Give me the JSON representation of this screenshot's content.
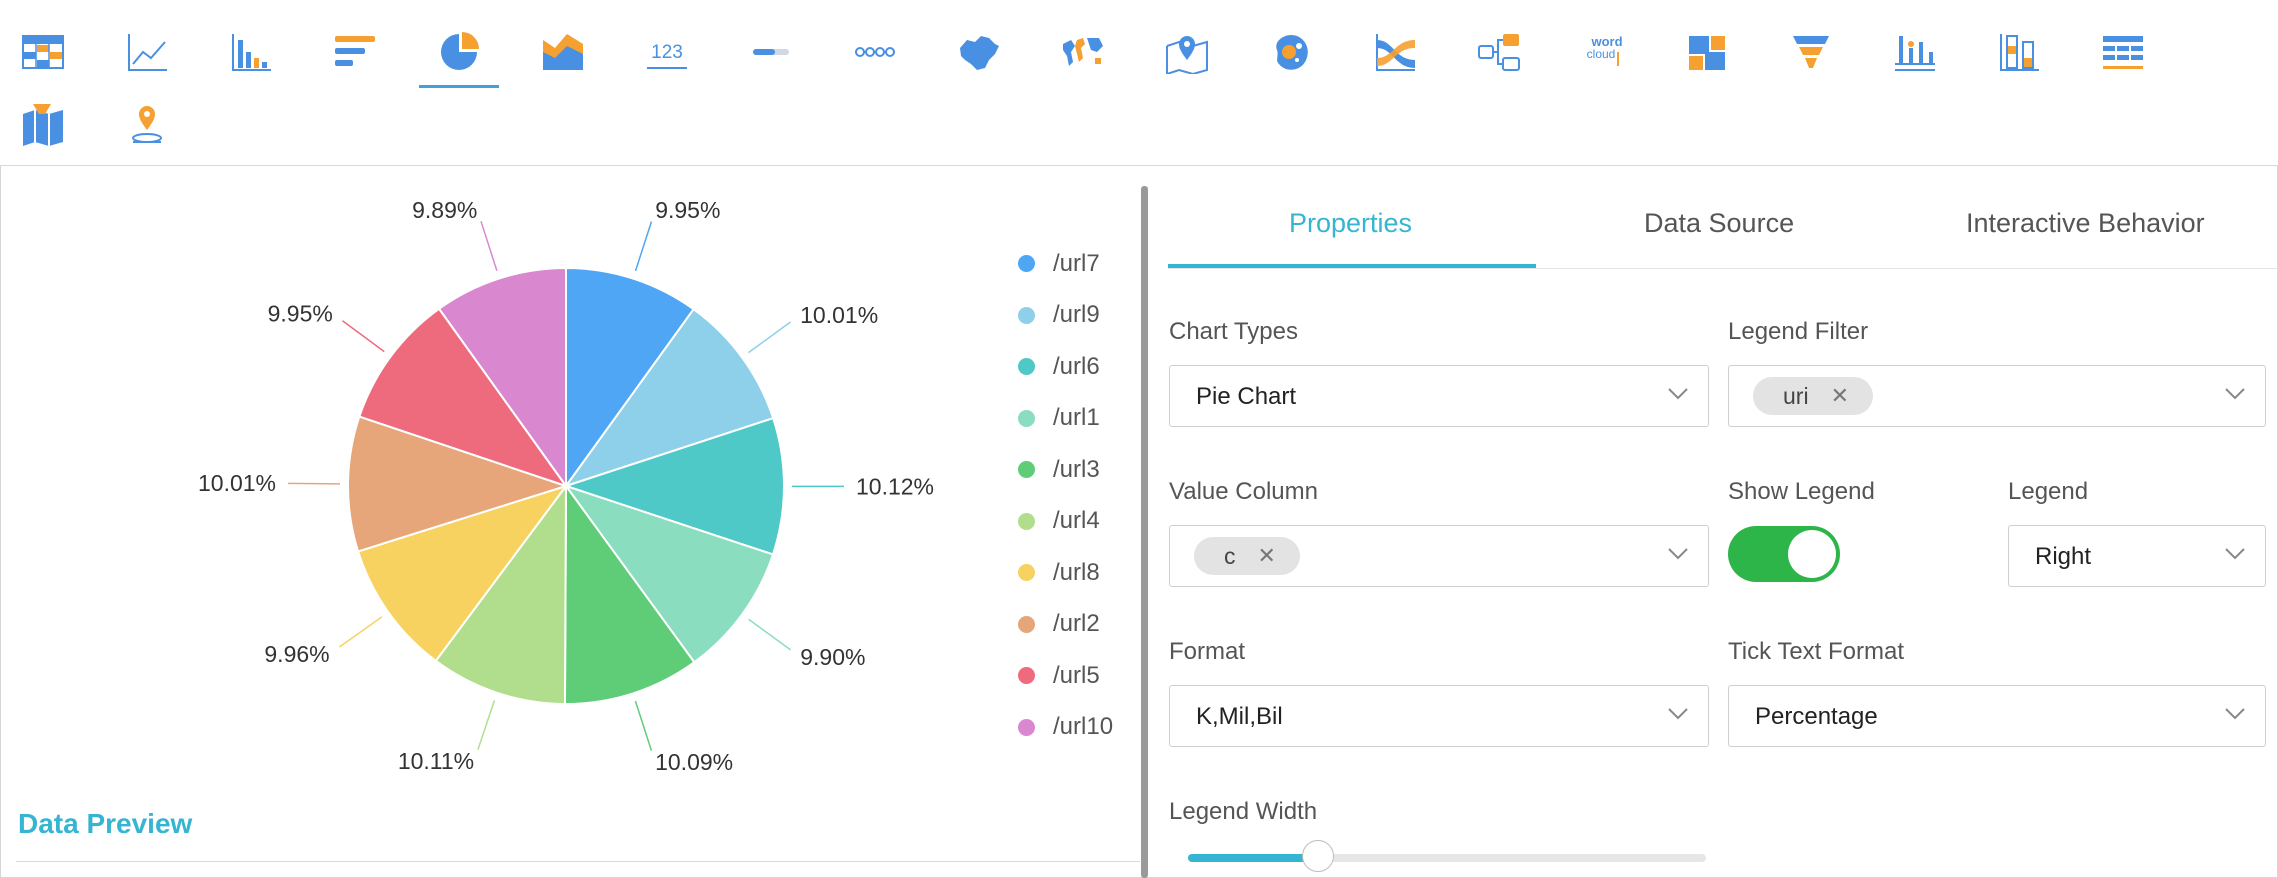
{
  "toolbar": {
    "icons": [
      "table-icon",
      "line-chart-icon",
      "column-chart-icon",
      "bar-chart-icon",
      "pie-chart-icon",
      "area-chart-icon",
      "kpi-number-icon",
      "progress-bar-icon",
      "timeline-icon",
      "china-map-icon",
      "world-map-icon",
      "location-map-icon",
      "bubble-map-icon",
      "sankey-icon",
      "flow-diagram-icon",
      "word-cloud-icon",
      "treemap-icon",
      "funnel-icon",
      "radar-bar-icon",
      "stacked-column-icon",
      "cross-table-icon",
      "area-map-icon",
      "pin-map-icon"
    ],
    "active_index": 4,
    "kpi_icon_text": "123",
    "wordcloud_icon_text": [
      "word",
      "cloud"
    ]
  },
  "chart_data": {
    "type": "pie",
    "categories": [
      "/url7",
      "/url9",
      "/url6",
      "/url1",
      "/url3",
      "/url4",
      "/url8",
      "/url2",
      "/url5",
      "/url10"
    ],
    "values": [
      9.95,
      10.01,
      10.12,
      9.9,
      10.09,
      10.11,
      9.96,
      10.01,
      9.95,
      9.89
    ],
    "labels": [
      "9.95%",
      "10.01%",
      "10.12%",
      "9.90%",
      "10.09%",
      "10.11%",
      "9.96%",
      "10.01%",
      "9.95%",
      "9.89%"
    ],
    "colors": [
      "#4fa6f5",
      "#8ed0ea",
      "#4ec9c7",
      "#8addbf",
      "#5fcc78",
      "#b0de8c",
      "#f8d260",
      "#e7a57a",
      "#ee6b7e",
      "#d988d0"
    ],
    "legend_position": "right"
  },
  "data_preview": {
    "title": "Data Preview"
  },
  "tabs": [
    {
      "label": "Properties",
      "active": true
    },
    {
      "label": "Data Source",
      "active": false
    },
    {
      "label": "Interactive Behavior",
      "active": false
    }
  ],
  "form": {
    "chart_types": {
      "label": "Chart Types",
      "value": "Pie Chart"
    },
    "legend_filter": {
      "label": "Legend Filter",
      "tag": "uri"
    },
    "value_column": {
      "label": "Value Column",
      "tag": "c"
    },
    "show_legend": {
      "label": "Show Legend",
      "on": true
    },
    "legend": {
      "label": "Legend",
      "value": "Right"
    },
    "format": {
      "label": "Format",
      "value": "K,Mil,Bil"
    },
    "tick_text_format": {
      "label": "Tick Text Format",
      "value": "Percentage"
    },
    "legend_width": {
      "label": "Legend Width",
      "level": 0.25
    }
  },
  "colors": {
    "accent": "#35b5d2",
    "toggle_on": "#2db54a",
    "icon_blue": "#4a90e2",
    "icon_orange": "#f5a030"
  }
}
